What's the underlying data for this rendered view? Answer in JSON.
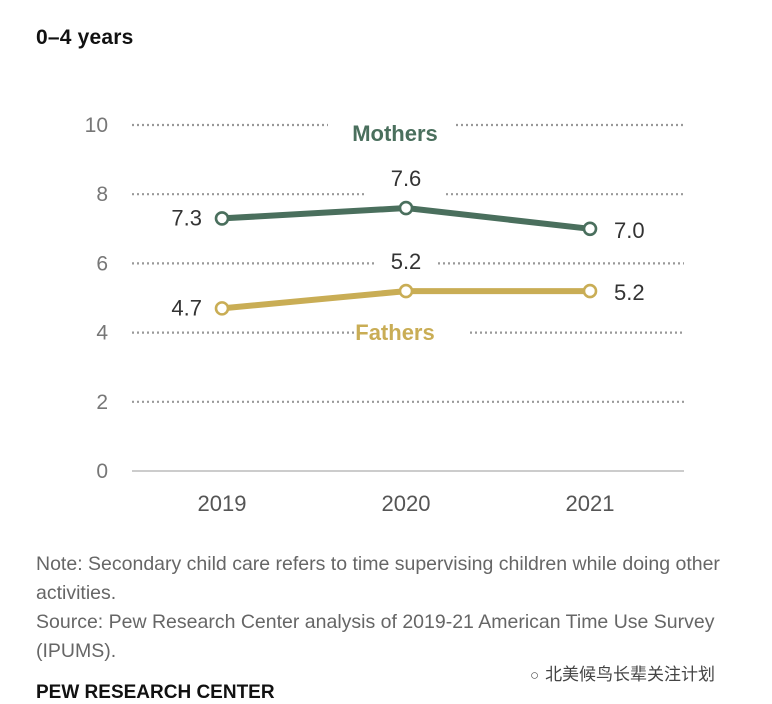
{
  "title": "0–4 years",
  "note": "Note: Secondary child care refers to time supervising children while doing other activities.",
  "source": "Source: Pew Research Center analysis of 2019-21 American Time Use Survey (IPUMS).",
  "footer": "PEW RESEARCH CENTER",
  "watermark": "北美候鸟长辈关注计划",
  "chart_data": {
    "type": "line",
    "title": "0–4 years",
    "x": [
      "2019",
      "2020",
      "2021"
    ],
    "y_ticks": [
      0,
      2,
      4,
      6,
      8,
      10
    ],
    "ylim": [
      0,
      10
    ],
    "grid": true,
    "series": [
      {
        "name": "Mothers",
        "values": [
          7.3,
          7.6,
          7.0
        ],
        "labels": [
          "7.3",
          "7.6",
          "7.0"
        ],
        "color": "#4a6f5d"
      },
      {
        "name": "Fathers",
        "values": [
          4.7,
          5.2,
          5.2
        ],
        "labels": [
          "4.7",
          "5.2",
          "5.2"
        ],
        "color": "#c9ad55"
      }
    ]
  }
}
